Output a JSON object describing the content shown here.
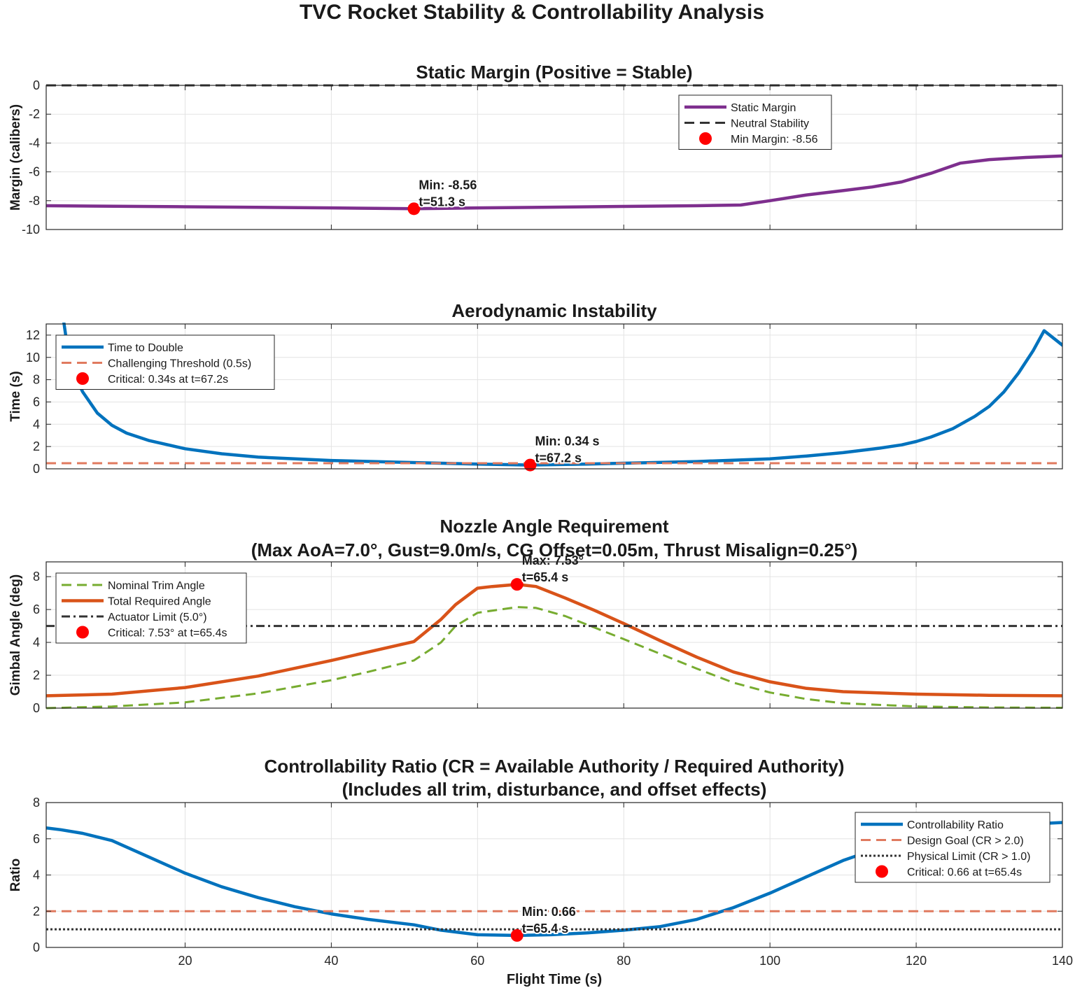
{
  "figure": {
    "title": "TVC Rocket Stability & Controllability Analysis",
    "xlabel": "Flight Time (s)"
  },
  "chart_data": [
    {
      "type": "line",
      "title": "Static Margin (Positive = Stable)",
      "xlabel": "",
      "ylabel": "Margin (calibers)",
      "xlim": [
        1,
        140
      ],
      "ylim": [
        -10,
        0
      ],
      "yticks": [
        0,
        -2,
        -4,
        -6,
        -8,
        -10
      ],
      "xticks": [
        20,
        40,
        60,
        80,
        100,
        120,
        140
      ],
      "show_xticklabels": false,
      "grid": true,
      "legend_position": "top-right",
      "series": [
        {
          "name": "Static Margin",
          "color": "#7e2f8e",
          "style": "solid",
          "x": [
            1,
            20,
            40,
            51.3,
            60,
            70,
            80,
            90,
            96,
            100,
            105,
            110,
            114,
            118,
            122,
            126,
            130,
            135,
            140
          ],
          "y": [
            -8.35,
            -8.42,
            -8.5,
            -8.56,
            -8.5,
            -8.45,
            -8.4,
            -8.35,
            -8.3,
            -8.0,
            -7.6,
            -7.3,
            -7.05,
            -6.7,
            -6.1,
            -5.4,
            -5.15,
            -5.0,
            -4.9
          ]
        },
        {
          "name": "Neutral Stability",
          "color": "#333333",
          "style": "dashed",
          "x": [
            1,
            140
          ],
          "y": [
            0,
            0
          ]
        }
      ],
      "markers": [
        {
          "name": "Min Margin: -8.56",
          "x": 51.3,
          "y": -8.56,
          "color": "#ff0000"
        }
      ],
      "annotations": [
        {
          "lines": [
            "Min: -8.56",
            "t=51.3 s"
          ],
          "x": 51.3,
          "y": -8.56
        }
      ]
    },
    {
      "type": "line",
      "title": "Aerodynamic Instability",
      "xlabel": "",
      "ylabel": "Time (s)",
      "xlim": [
        1,
        140
      ],
      "ylim": [
        0,
        13
      ],
      "yticks": [
        0,
        2,
        4,
        6,
        8,
        10,
        12
      ],
      "xticks": [
        20,
        40,
        60,
        80,
        100,
        120,
        140
      ],
      "show_xticklabels": false,
      "grid": true,
      "legend_position": "top-left",
      "series": [
        {
          "name": "Time to Double",
          "color": "#0072bd",
          "style": "solid",
          "x": [
            3.4,
            4,
            5,
            6,
            8,
            10,
            12,
            15,
            20,
            25,
            30,
            40,
            50,
            55,
            60,
            67.2,
            75,
            80,
            90,
            100,
            105,
            110,
            115,
            118,
            120,
            122,
            125,
            128,
            130,
            132,
            134,
            136,
            137.5,
            140
          ],
          "y": [
            13.2,
            10.5,
            8.2,
            6.9,
            5.0,
            3.9,
            3.2,
            2.55,
            1.8,
            1.35,
            1.05,
            0.75,
            0.58,
            0.5,
            0.42,
            0.34,
            0.42,
            0.5,
            0.65,
            0.9,
            1.15,
            1.45,
            1.85,
            2.15,
            2.45,
            2.85,
            3.6,
            4.7,
            5.6,
            6.9,
            8.6,
            10.6,
            12.4,
            11.1
          ]
        },
        {
          "name": "Challenging Threshold (0.5s)",
          "color": "#e07a5f",
          "style": "dashed",
          "x": [
            1,
            140
          ],
          "y": [
            0.5,
            0.5
          ]
        }
      ],
      "markers": [
        {
          "name": "Critical: 0.34s at t=67.2s",
          "x": 67.2,
          "y": 0.34,
          "color": "#ff0000"
        }
      ],
      "annotations": [
        {
          "lines": [
            "Min: 0.34 s",
            "t=67.2 s"
          ],
          "x": 67.2,
          "y": 0.34
        }
      ]
    },
    {
      "type": "line",
      "title": "Nozzle Angle Requirement",
      "subtitle": "(Max AoA=7.0°, Gust=9.0m/s, CG Offset=0.05m, Thrust Misalign=0.25°)",
      "xlabel": "",
      "ylabel": "Gimbal Angle (deg)",
      "xlim": [
        1,
        140
      ],
      "ylim": [
        0,
        8.9
      ],
      "yticks": [
        0,
        2,
        4,
        6,
        8
      ],
      "xticks": [
        20,
        40,
        60,
        80,
        100,
        120,
        140
      ],
      "show_xticklabels": false,
      "grid": true,
      "legend_position": "top-left",
      "series": [
        {
          "name": "Nominal Trim Angle",
          "color": "#77ac30",
          "style": "dashed",
          "x": [
            1,
            10,
            20,
            30,
            40,
            45,
            51.3,
            55,
            57,
            60,
            65.4,
            68,
            72,
            76,
            80,
            85,
            90,
            95,
            100,
            105,
            110,
            120,
            130,
            140
          ],
          "y": [
            0.0,
            0.1,
            0.35,
            0.9,
            1.7,
            2.2,
            2.9,
            4.0,
            5.0,
            5.8,
            6.15,
            6.1,
            5.6,
            4.9,
            4.2,
            3.3,
            2.4,
            1.55,
            0.95,
            0.55,
            0.3,
            0.1,
            0.04,
            0.02
          ]
        },
        {
          "name": "Total Required Angle",
          "color": "#d95319",
          "style": "solid",
          "x": [
            1,
            10,
            20,
            30,
            40,
            51.3,
            55,
            57,
            60,
            62,
            65.4,
            68,
            72,
            76,
            80,
            85,
            90,
            95,
            100,
            105,
            110,
            120,
            130,
            140
          ],
          "y": [
            0.75,
            0.85,
            1.25,
            1.95,
            2.9,
            4.05,
            5.4,
            6.3,
            7.3,
            7.4,
            7.53,
            7.4,
            6.7,
            5.95,
            5.15,
            4.1,
            3.1,
            2.2,
            1.6,
            1.2,
            1.0,
            0.85,
            0.78,
            0.75
          ]
        },
        {
          "name": "Actuator Limit (5.0°)",
          "color": "#333333",
          "style": "dashdot",
          "x": [
            1,
            140
          ],
          "y": [
            5,
            5
          ]
        }
      ],
      "markers": [
        {
          "name": "Critical: 7.53° at t=65.4s",
          "x": 65.4,
          "y": 7.53,
          "color": "#ff0000"
        }
      ],
      "annotations": [
        {
          "lines": [
            "Max: 7.53°",
            "t=65.4 s"
          ],
          "x": 65.4,
          "y": 7.53
        }
      ]
    },
    {
      "type": "line",
      "title": "Controllability Ratio (CR = Available Authority / Required Authority)",
      "subtitle": "(Includes all trim, disturbance, and offset effects)",
      "xlabel": "Flight Time (s)",
      "ylabel": "Ratio",
      "xlim": [
        1,
        140
      ],
      "ylim": [
        0,
        8
      ],
      "yticks": [
        0,
        2,
        4,
        6,
        8
      ],
      "xticks": [
        20,
        40,
        60,
        80,
        100,
        120,
        140
      ],
      "show_xticklabels": true,
      "grid": true,
      "legend_position": "top-right",
      "series": [
        {
          "name": "Controllability Ratio",
          "color": "#0072bd",
          "style": "solid",
          "x": [
            1,
            3,
            6,
            10,
            15,
            20,
            25,
            30,
            35,
            40,
            45,
            51.3,
            55,
            60,
            65.4,
            70,
            75,
            80,
            85,
            90,
            95,
            100,
            105,
            110,
            115,
            120,
            125,
            130,
            135,
            140
          ],
          "y": [
            6.6,
            6.5,
            6.3,
            5.9,
            5.0,
            4.1,
            3.35,
            2.75,
            2.25,
            1.85,
            1.55,
            1.25,
            0.95,
            0.7,
            0.66,
            0.7,
            0.8,
            0.95,
            1.15,
            1.55,
            2.2,
            3.0,
            3.9,
            4.8,
            5.5,
            6.0,
            6.4,
            6.65,
            6.8,
            6.9
          ]
        },
        {
          "name": "Design Goal (CR > 2.0)",
          "color": "#e07a5f",
          "style": "dashed",
          "x": [
            1,
            140
          ],
          "y": [
            2,
            2
          ]
        },
        {
          "name": "Physical Limit (CR > 1.0)",
          "color": "#333333",
          "style": "dotted",
          "x": [
            1,
            140
          ],
          "y": [
            1,
            1
          ]
        }
      ],
      "markers": [
        {
          "name": "Critical: 0.66 at t=65.4s",
          "x": 65.4,
          "y": 0.66,
          "color": "#ff0000"
        }
      ],
      "annotations": [
        {
          "lines": [
            "Min: 0.66",
            "t=65.4 s"
          ],
          "x": 65.4,
          "y": 0.66
        }
      ]
    }
  ]
}
